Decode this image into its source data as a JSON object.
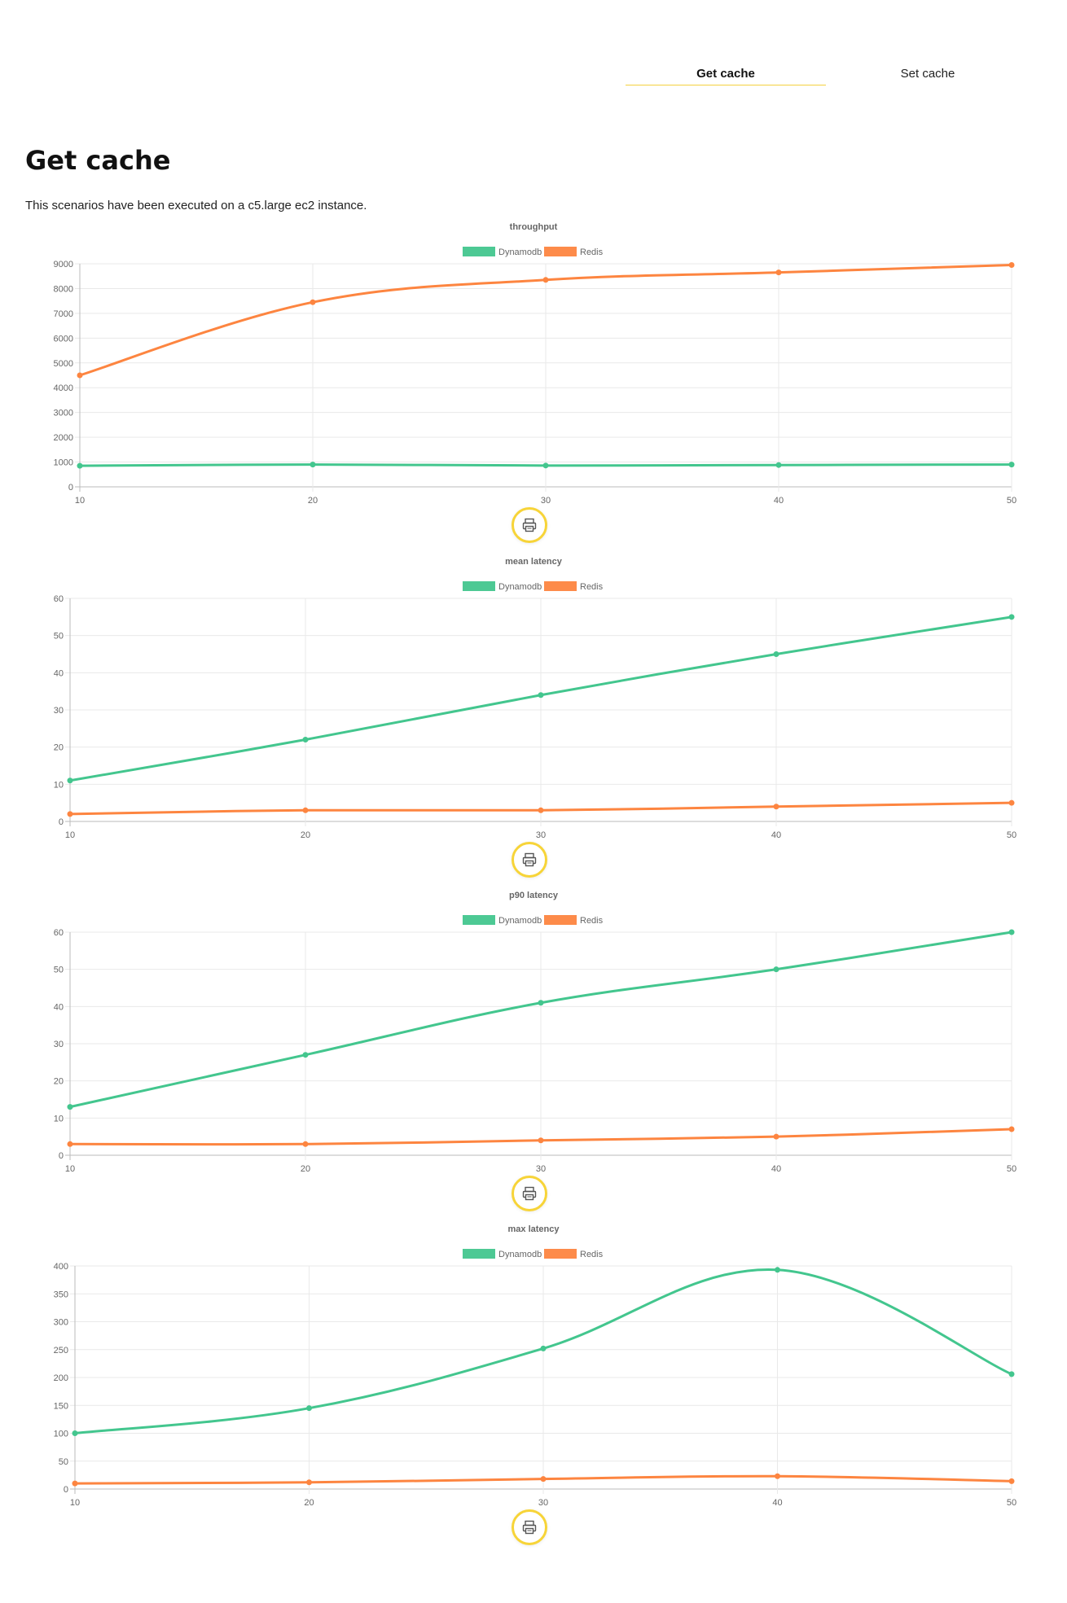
{
  "tabs": [
    {
      "label": "Get cache",
      "active": true
    },
    {
      "label": "Set cache",
      "active": false
    }
  ],
  "page": {
    "title": "Get cache",
    "description": "This scenarios have been executed on a c5.large ec2 instance."
  },
  "colors": {
    "dynamodb": "#43c68e",
    "redis": "#fd8540",
    "accent": "#f7d438"
  },
  "print_icon": "printer-icon",
  "chart_data": [
    {
      "type": "line",
      "title": "throughput",
      "x": [
        10,
        20,
        30,
        40,
        50
      ],
      "ylim": [
        0,
        9000
      ],
      "yticks": [
        0,
        1000,
        2000,
        3000,
        4000,
        5000,
        6000,
        7000,
        8000,
        9000
      ],
      "grid": true,
      "legend": "top-center",
      "series": [
        {
          "name": "Dynamodb",
          "values": [
            850,
            900,
            860,
            880,
            900
          ]
        },
        {
          "name": "Redis",
          "values": [
            4500,
            7450,
            8350,
            8650,
            8950
          ]
        }
      ]
    },
    {
      "type": "line",
      "title": "mean latency",
      "x": [
        10,
        20,
        30,
        40,
        50
      ],
      "ylim": [
        0,
        60
      ],
      "yticks": [
        0,
        10,
        20,
        30,
        40,
        50,
        60
      ],
      "grid": true,
      "legend": "top-center",
      "series": [
        {
          "name": "Dynamodb",
          "values": [
            11,
            22,
            34,
            45,
            55
          ]
        },
        {
          "name": "Redis",
          "values": [
            2,
            3,
            3,
            4,
            5
          ]
        }
      ]
    },
    {
      "type": "line",
      "title": "p90 latency",
      "x": [
        10,
        20,
        30,
        40,
        50
      ],
      "ylim": [
        0,
        60
      ],
      "yticks": [
        0,
        10,
        20,
        30,
        40,
        50,
        60
      ],
      "grid": true,
      "legend": "top-center",
      "series": [
        {
          "name": "Dynamodb",
          "values": [
            13,
            27,
            41,
            50,
            60
          ]
        },
        {
          "name": "Redis",
          "values": [
            3,
            3,
            4,
            5,
            7
          ]
        }
      ]
    },
    {
      "type": "line",
      "title": "max latency",
      "x": [
        10,
        20,
        30,
        40,
        50
      ],
      "ylim": [
        0,
        400
      ],
      "yticks": [
        0,
        50,
        100,
        150,
        200,
        250,
        300,
        350,
        400
      ],
      "grid": true,
      "legend": "top-center",
      "series": [
        {
          "name": "Dynamodb",
          "values": [
            100,
            145,
            252,
            393,
            206
          ]
        },
        {
          "name": "Redis",
          "values": [
            10,
            12,
            18,
            23,
            14
          ]
        }
      ]
    }
  ]
}
